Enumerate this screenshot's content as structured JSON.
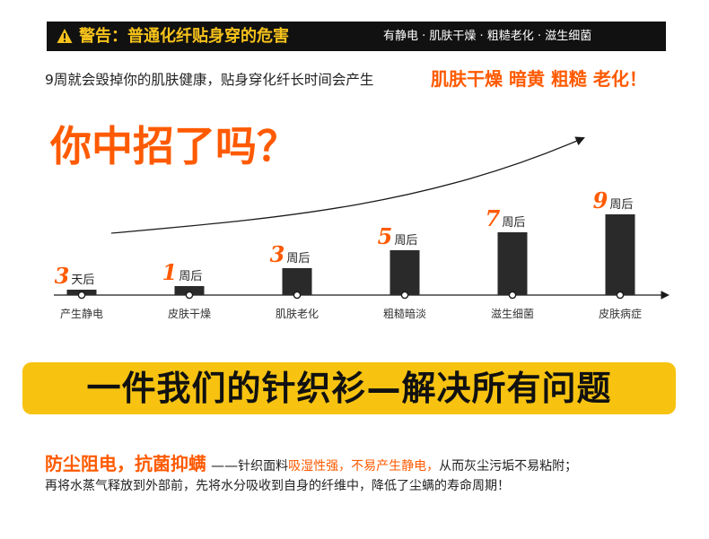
{
  "header": {
    "title": "警告：普通化纤贴身穿的危害",
    "tags": "有静电 · 肌肤干燥 · 粗糙老化 · 滋生细菌",
    "colors": {
      "bar": "#111111",
      "title": "#f6c21b",
      "tags": "#ffffff"
    },
    "icon": "warning-triangle-icon"
  },
  "intro": {
    "text": "9周就会毁掉你的肌肤健康，贴身穿化纤长时间会产生",
    "highlight": "肌肤干燥 暗黄 粗糙 老化！",
    "highlight_color": "#ff5a00"
  },
  "question": "你中招了吗？",
  "chart_data": {
    "type": "bar",
    "categories": [
      "产生静电",
      "皮肤干燥",
      "肌肤老化",
      "粗糙暗淡",
      "滋生细菌",
      "皮肤病症"
    ],
    "time_numbers": [
      "3",
      "1",
      "3",
      "5",
      "7",
      "9"
    ],
    "time_units": [
      "天后",
      "周后",
      "周后",
      "周后",
      "周后",
      "周后"
    ],
    "values": [
      0.5,
      1,
      3,
      5,
      7,
      9
    ],
    "ylim": [
      0,
      9
    ],
    "grid": false,
    "legend": "none",
    "bar_color": "#2a2a2a",
    "number_color": "#ff5a00",
    "trend_arrow": true
  },
  "banner": {
    "text": "一件我们的针织衫—解决所有问题",
    "color": "#f7c310"
  },
  "paragraph": {
    "title": "防尘阻电，抗菌抑螨",
    "dash": "——",
    "part1": "针织面料",
    "part2_orange": "吸湿性强，不易产生静电，",
    "part3": "从而灰尘污垢不易粘附；",
    "line2": "再将水蒸气释放到外部前，先将水分吸收到自身的纤维中，降低了尘螨的寿命周期！"
  }
}
